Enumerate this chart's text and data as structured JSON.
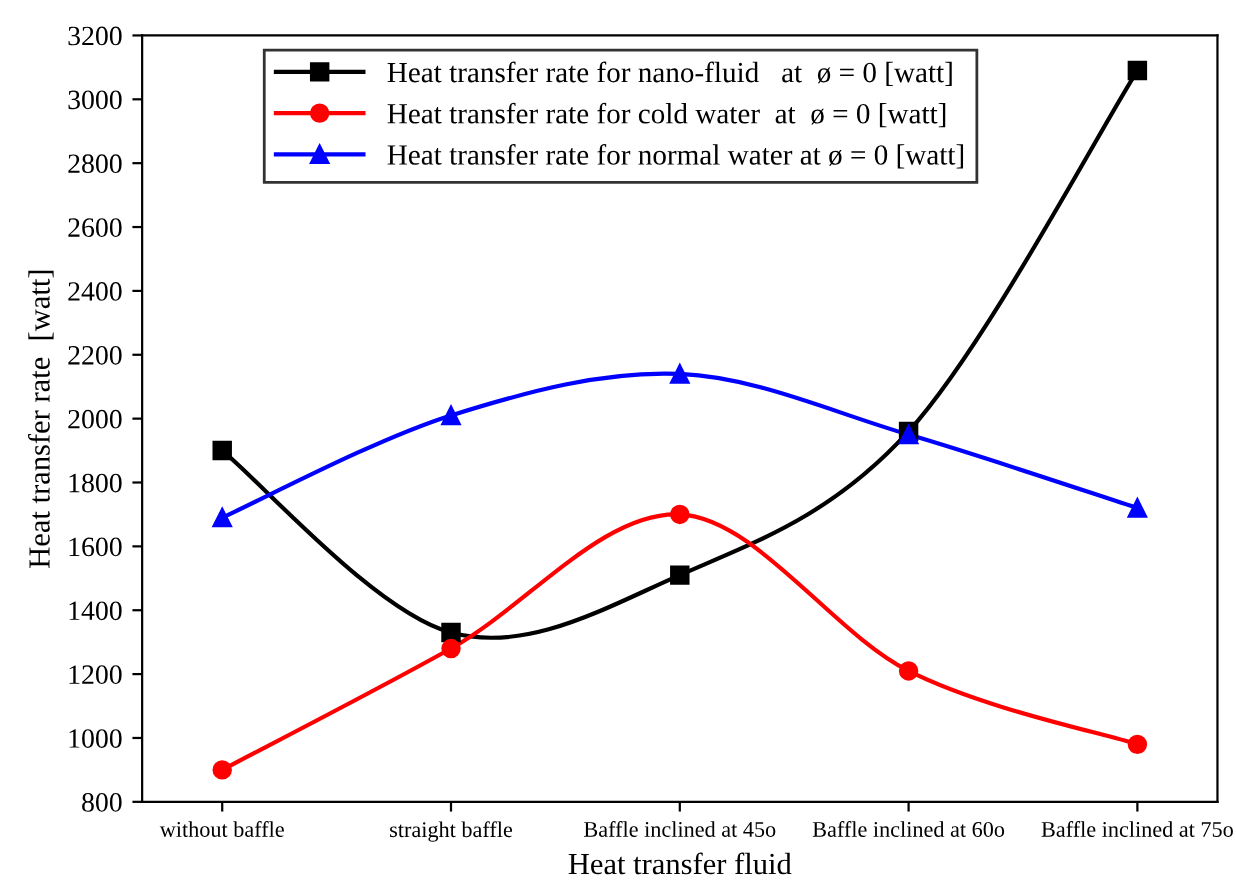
{
  "chart_data": {
    "type": "line",
    "xlabel": "Heat transfer fluid",
    "ylabel": "Heat transfer rate  [watt]",
    "categories": [
      "without baffle",
      "straight baffle",
      "Baffle inclined at 45o",
      "Baffle inclined at 60o",
      "Baffle inclined at 75o"
    ],
    "series": [
      {
        "name": "Heat transfer rate for nano-fluid   at  ø = 0 [watt]",
        "color": "#000000",
        "marker": "square",
        "values": [
          1900,
          1330,
          1510,
          1960,
          3090
        ]
      },
      {
        "name": "Heat transfer rate for cold water  at  ø = 0 [watt]",
        "color": "#ff0000",
        "marker": "circle",
        "values": [
          900,
          1280,
          1700,
          1210,
          980
        ]
      },
      {
        "name": "Heat transfer rate for normal water at ø = 0 [watt]",
        "color": "#0000ff",
        "marker": "triangle",
        "values": [
          1690,
          2010,
          2140,
          1950,
          1720
        ]
      }
    ],
    "ylim": [
      800,
      3200
    ],
    "yticks": [
      800,
      1000,
      1200,
      1400,
      1600,
      1800,
      2000,
      2200,
      2400,
      2600,
      2800,
      3000,
      3200
    ],
    "grid": false,
    "legend": "top left",
    "line_style": "solid"
  }
}
